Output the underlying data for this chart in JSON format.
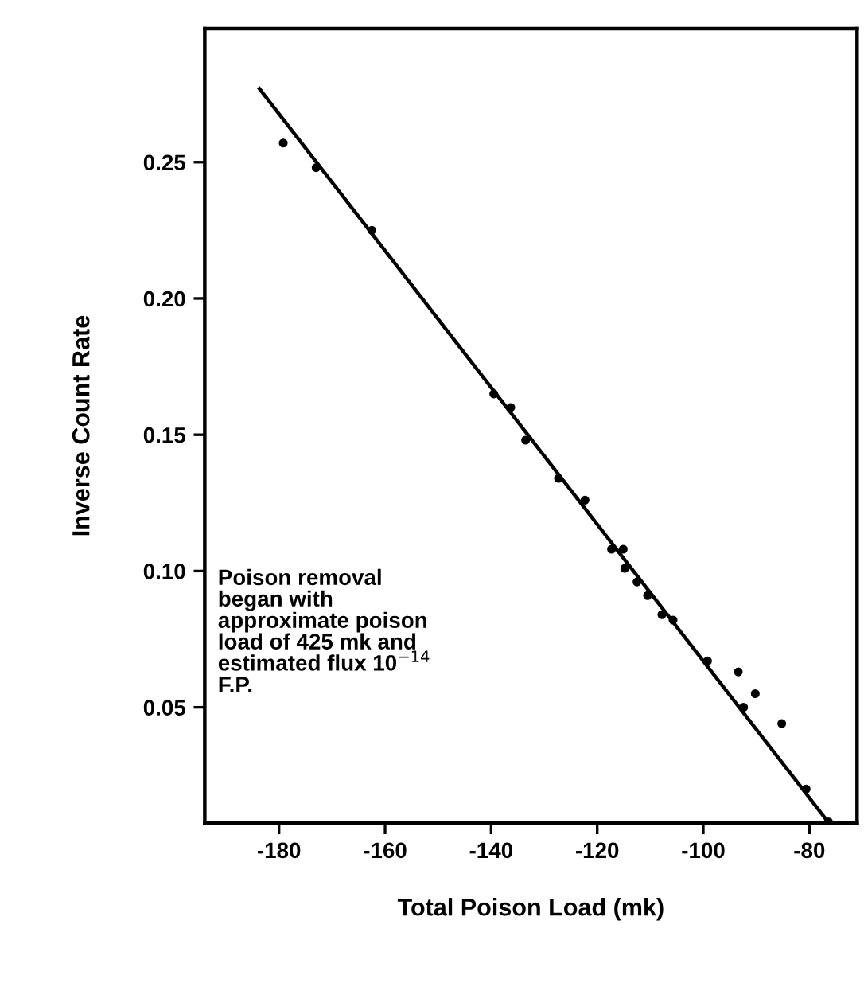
{
  "chart_data": {
    "type": "scatter",
    "xlabel": "Total Poison Load (mk)",
    "ylabel": "Inverse Count Rate",
    "xlim": [
      -194,
      -71
    ],
    "ylim": [
      0.0075,
      0.299
    ],
    "xticks": [
      -180,
      -160,
      -140,
      -120,
      -100,
      -80
    ],
    "yticks": [
      {
        "value": 0.05,
        "label": "0.05"
      },
      {
        "value": 0.1,
        "label": "0.10"
      },
      {
        "value": 0.15,
        "label": "0.15"
      },
      {
        "value": 0.2,
        "label": "0.20"
      },
      {
        "value": 0.25,
        "label": "0.25"
      }
    ],
    "grid": false,
    "series": [
      {
        "marker": "circle",
        "color": "#000000",
        "x": [
          -179.2,
          -173.0,
          -162.5,
          -139.5,
          -136.3,
          -133.5,
          -127.3,
          -122.3,
          -117.3,
          -115.1,
          -114.8,
          -112.5,
          -110.5,
          -107.8,
          -105.7,
          -99.2,
          -93.4,
          -92.4,
          -90.2,
          -85.2,
          -80.6,
          -76.4
        ],
        "values": [
          0.257,
          0.248,
          0.225,
          0.165,
          0.16,
          0.148,
          0.134,
          0.126,
          0.108,
          0.108,
          0.101,
          0.096,
          0.091,
          0.084,
          0.082,
          0.067,
          0.063,
          0.05,
          0.055,
          0.044,
          0.02,
          0.008
        ]
      },
      {
        "type": "line",
        "color": "#000000",
        "line_style": "solid",
        "x": [
          -183.7,
          -76.3
        ],
        "values": [
          0.277,
          0.0075
        ]
      }
    ],
    "annotations": [
      "Poison removal\nbegan with\napproximate poison\nload of 425 mk and\nestimated flux 10$^{−14}$\nF.P."
    ]
  }
}
